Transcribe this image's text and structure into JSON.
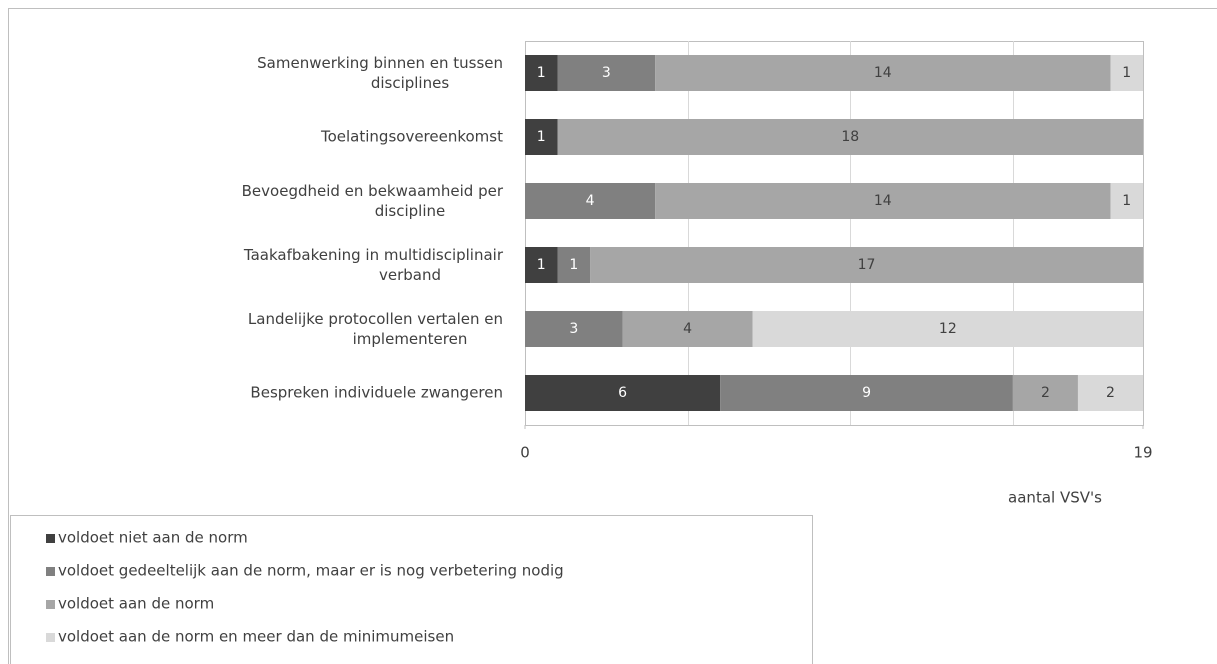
{
  "chart_data": {
    "type": "stacked-bar-horizontal",
    "categories": [
      "Samenwerking binnen en tussen disciplines",
      "Toelatingsovereenkomst",
      "Bevoegdheid en bekwaamheid per discipline",
      "Taakafbakening in multidisciplinair verband",
      "Landelijke protocollen vertalen en implementeren",
      "Bespreken individuele zwangeren"
    ],
    "series": [
      {
        "name": "voldoet niet aan de norm",
        "color": "#404040",
        "values": [
          1,
          1,
          0,
          1,
          0,
          6
        ]
      },
      {
        "name": "voldoet gedeeltelijk aan de norm, maar er is nog verbetering nodig",
        "color": "#808080",
        "values": [
          3,
          0,
          4,
          1,
          3,
          9
        ]
      },
      {
        "name": "voldoet aan de norm",
        "color": "#a6a6a6",
        "values": [
          14,
          18,
          14,
          17,
          4,
          2
        ]
      },
      {
        "name": "voldoet aan de norm en meer dan de minimumeisen",
        "color": "#d9d9d9",
        "values": [
          1,
          0,
          1,
          0,
          12,
          2
        ]
      }
    ],
    "xlim": [
      0,
      19
    ],
    "xticks": [
      0,
      19
    ],
    "xgrid": [
      5,
      10,
      15
    ],
    "grid": true,
    "x_label": "aantal VSV's",
    "legend": "bottom-left"
  }
}
